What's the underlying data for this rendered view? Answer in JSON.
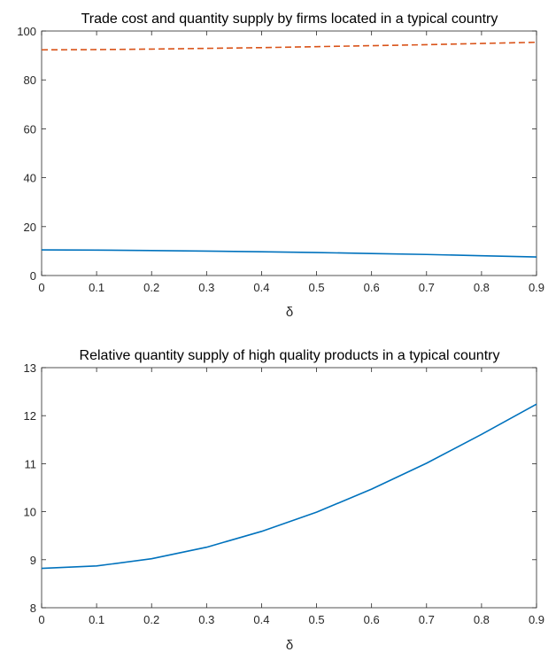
{
  "chart_data": [
    {
      "type": "line",
      "title": "Trade cost and quantity supply by firms located in a typical country",
      "xlabel": "δ",
      "ylabel": "",
      "xlim": [
        0,
        0.9
      ],
      "ylim": [
        0,
        100
      ],
      "xticks": [
        0,
        0.1,
        0.2,
        0.3,
        0.4,
        0.5,
        0.6,
        0.7,
        0.8,
        0.9
      ],
      "yticks": [
        0,
        20,
        40,
        60,
        80,
        100
      ],
      "grid": false,
      "x": [
        0,
        0.1,
        0.2,
        0.3,
        0.4,
        0.5,
        0.6,
        0.7,
        0.8,
        0.9
      ],
      "series": [
        {
          "values": [
            10.5,
            10.4,
            10.2,
            10.0,
            9.7,
            9.4,
            9.0,
            8.6,
            8.1,
            7.6
          ],
          "color": "#0072BD",
          "style": "solid"
        },
        {
          "values": [
            92.3,
            92.4,
            92.6,
            92.9,
            93.2,
            93.6,
            94.0,
            94.4,
            94.9,
            95.4
          ],
          "color": "#D95319",
          "style": "dashed"
        }
      ]
    },
    {
      "type": "line",
      "title": "Relative quantity supply of high quality products  in a typical country",
      "xlabel": "δ",
      "ylabel": "",
      "xlim": [
        0,
        0.9
      ],
      "ylim": [
        8,
        13
      ],
      "xticks": [
        0,
        0.1,
        0.2,
        0.3,
        0.4,
        0.5,
        0.6,
        0.7,
        0.8,
        0.9
      ],
      "yticks": [
        8,
        9,
        10,
        11,
        12,
        13
      ],
      "grid": false,
      "x": [
        0,
        0.1,
        0.2,
        0.3,
        0.4,
        0.5,
        0.6,
        0.7,
        0.8,
        0.9
      ],
      "series": [
        {
          "values": [
            8.82,
            8.87,
            9.02,
            9.26,
            9.59,
            9.99,
            10.47,
            11.01,
            11.61,
            12.24
          ],
          "color": "#0072BD",
          "style": "solid"
        }
      ]
    }
  ]
}
